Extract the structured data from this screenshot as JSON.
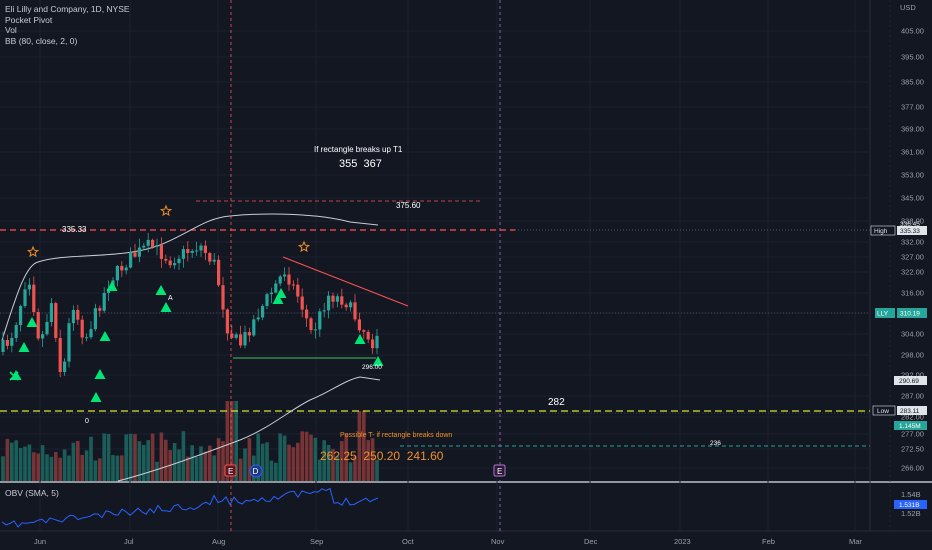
{
  "legend": {
    "title": "Eli Lilly and Company, 1D, NYSE",
    "line2": "Pocket Pivot",
    "line3": "Vol",
    "line4": "BB (80, close, 2, 0)"
  },
  "obv_label": "OBV (SMA, 5)",
  "currency": "USD",
  "y_axis_ticks": [
    "405.00",
    "395.00",
    "385.00",
    "377.00",
    "369.00",
    "361.00",
    "353.00",
    "345.00",
    "338.00",
    "332.00",
    "327.00",
    "322.00",
    "316.00",
    "310.00",
    "304.00",
    "298.00",
    "292.00",
    "287.00",
    "282.00",
    "277.00",
    "272.50",
    "266.00"
  ],
  "obv_ticks": [
    "1.54B",
    "1.52B"
  ],
  "x_axis_ticks": [
    "Jun",
    "Jul",
    "Aug",
    "Sep",
    "Oct",
    "Nov",
    "Dec",
    "2023",
    "Feb",
    "Mar"
  ],
  "price_labels": {
    "high_tag": "High",
    "high_value": "335.33",
    "high_partial": "336.45",
    "lly_tag": "LLY",
    "lly_value": "310.19",
    "band_value": "290.69",
    "low_tag": "Low",
    "low_value": "283.11",
    "vol_value": "1.145M",
    "obv_value": "1.531B"
  },
  "annotations": {
    "rect_up_title": "If rectangle breaks up T1",
    "rect_up_targets": "355  367",
    "level_375": "375.60",
    "level_335": "335.33",
    "level_282": "282",
    "level_296": "296.00",
    "level_236": "236",
    "rect_down_title": "Possible T- if rectangle breaks down",
    "rect_down_targets": "262.25  250.20  241.60",
    "marker_a": "A",
    "marker_zero": "0",
    "earn_e": "E",
    "earn_d": "D",
    "earn_e2": "E"
  },
  "colors": {
    "background": "#131722",
    "up": "#26a69a",
    "down": "#ef5350",
    "accent_green": "#00e676",
    "accent_red": "#ff5252",
    "accent_yellow": "#d6e22c",
    "accent_orange": "#f0902a"
  }
}
